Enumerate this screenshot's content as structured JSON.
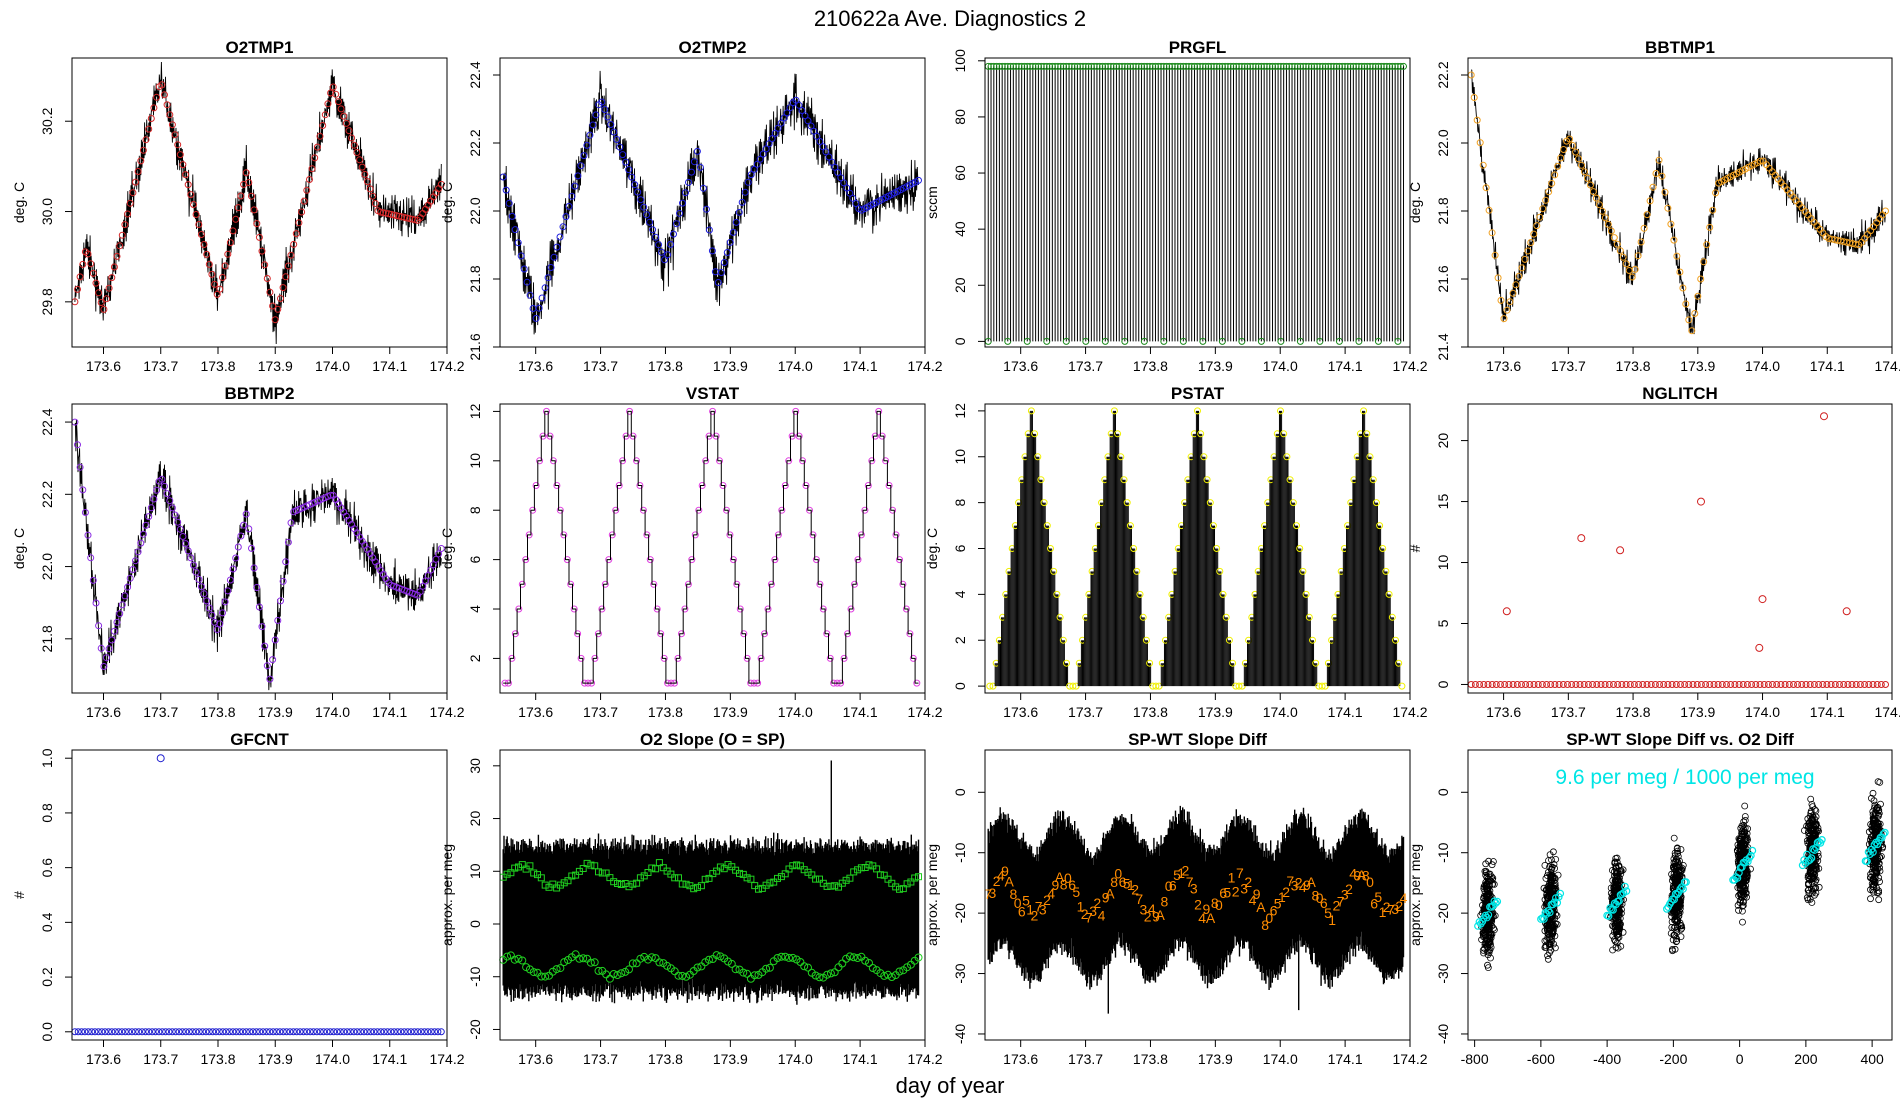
{
  "page": {
    "title": "210622a   Ave. Diagnostics 2",
    "xlabel": "day of year"
  },
  "colors": {
    "O2TMP1": "#d62728",
    "O2TMP2": "#1f1fdf",
    "PRGFL": "#1a8a1a",
    "BBTMP1": "#f0a020",
    "BBTMP2": "#8a2be2",
    "VSTAT": "#e040e0",
    "PSTAT": "#f0f000",
    "NGLITCH": "#d02020",
    "GFCNT": "#2020d0",
    "slope": "#20d020",
    "orange": "#ff8c00",
    "cyan": "#00e5e5"
  },
  "chart_data": [
    {
      "id": "O2TMP1",
      "type": "line",
      "title": "O2TMP1",
      "ylabel": "deg. C",
      "xlim": [
        173.545,
        174.2
      ],
      "ylim": [
        29.7,
        30.34
      ],
      "xticks": [
        173.6,
        173.7,
        173.8,
        173.9,
        174.0,
        174.1,
        174.2
      ],
      "xticklabels": [
        "173.6",
        "173.7",
        "173.8",
        "173.9",
        "174.0",
        "174.1",
        "174.2"
      ],
      "yticks": [
        29.8,
        30.0,
        30.2
      ],
      "yticklabels": [
        "29.8",
        "30.0",
        "30.2"
      ],
      "x": [
        173.55,
        173.57,
        173.6,
        173.7,
        173.8,
        173.85,
        173.9,
        174.0,
        174.08,
        174.15,
        174.19
      ],
      "y": [
        29.8,
        29.92,
        29.78,
        30.29,
        29.81,
        30.09,
        29.76,
        30.28,
        30.0,
        29.98,
        30.06
      ],
      "noise": 0.03
    },
    {
      "id": "O2TMP2",
      "type": "line",
      "title": "O2TMP2",
      "ylabel": "deg. C",
      "xlim": [
        173.545,
        174.2
      ],
      "ylim": [
        21.6,
        22.45
      ],
      "xticks": [
        173.6,
        173.7,
        173.8,
        173.9,
        174.0,
        174.1,
        174.2
      ],
      "xticklabels": [
        "173.6",
        "173.7",
        "173.8",
        "173.9",
        "174.0",
        "174.1",
        "174.2"
      ],
      "yticks": [
        21.6,
        21.8,
        22.0,
        22.2,
        22.4
      ],
      "yticklabels": [
        "21.6",
        "21.8",
        "22.0",
        "22.2",
        "22.4"
      ],
      "x": [
        173.55,
        173.6,
        173.7,
        173.8,
        173.85,
        173.88,
        173.93,
        174.0,
        174.1,
        174.15,
        174.19
      ],
      "y": [
        22.1,
        21.68,
        22.33,
        21.85,
        22.18,
        21.78,
        22.1,
        22.33,
        22.0,
        22.05,
        22.09
      ],
      "noise": 0.05
    },
    {
      "id": "PRGFL",
      "type": "spike",
      "title": "PRGFL",
      "ylabel": "sccm",
      "xlim": [
        173.545,
        174.2
      ],
      "ylim": [
        -2,
        101
      ],
      "xticks": [
        173.6,
        173.7,
        173.8,
        173.9,
        174.0,
        174.1,
        174.2
      ],
      "xticklabels": [
        "173.6",
        "173.7",
        "173.8",
        "173.9",
        "174.0",
        "174.1",
        "174.2"
      ],
      "yticks": [
        0,
        20,
        40,
        60,
        80,
        100
      ],
      "yticklabels": [
        "0",
        "20",
        "40",
        "60",
        "80",
        "100"
      ],
      "high": 98,
      "low": 0,
      "spikes": 150
    },
    {
      "id": "BBTMP1",
      "type": "line",
      "title": "BBTMP1",
      "ylabel": "deg. C",
      "xlim": [
        173.545,
        174.2
      ],
      "ylim": [
        21.4,
        22.25
      ],
      "xticks": [
        173.6,
        173.7,
        173.8,
        173.9,
        174.0,
        174.1,
        174.2
      ],
      "xticklabels": [
        "173.6",
        "173.7",
        "173.8",
        "173.9",
        "174.0",
        "174.1",
        "174.2"
      ],
      "yticks": [
        21.4,
        21.6,
        21.8,
        22.0,
        22.2
      ],
      "yticklabels": [
        "21.4",
        "21.6",
        "21.8",
        "22.0",
        "22.2"
      ],
      "x": [
        173.55,
        173.6,
        173.7,
        173.8,
        173.84,
        173.89,
        173.93,
        174.0,
        174.1,
        174.15,
        174.19
      ],
      "y": [
        22.2,
        21.48,
        22.02,
        21.6,
        21.95,
        21.44,
        21.88,
        21.95,
        21.72,
        21.7,
        21.8
      ],
      "noise": 0.03
    },
    {
      "id": "BBTMP2",
      "type": "line",
      "title": "BBTMP2",
      "ylabel": "deg. C",
      "xlim": [
        173.545,
        174.2
      ],
      "ylim": [
        21.65,
        22.45
      ],
      "xticks": [
        173.6,
        173.7,
        173.8,
        173.9,
        174.0,
        174.1,
        174.2
      ],
      "xticklabels": [
        "173.6",
        "173.7",
        "173.8",
        "173.9",
        "174.0",
        "174.1",
        "174.2"
      ],
      "yticks": [
        21.8,
        22.0,
        22.2,
        22.4
      ],
      "yticklabels": [
        "21.8",
        "22.0",
        "22.2",
        "22.4"
      ],
      "x": [
        173.55,
        173.6,
        173.7,
        173.8,
        173.85,
        173.89,
        173.93,
        174.0,
        174.1,
        174.15,
        174.19
      ],
      "y": [
        22.4,
        21.72,
        22.25,
        21.82,
        22.15,
        21.68,
        22.15,
        22.2,
        21.95,
        21.92,
        22.05
      ],
      "noise": 0.04
    },
    {
      "id": "VSTAT",
      "type": "step",
      "title": "VSTAT",
      "ylabel": "deg. C",
      "xlim": [
        173.545,
        174.2
      ],
      "ylim": [
        0.6,
        12.3
      ],
      "xticks": [
        173.6,
        173.7,
        173.8,
        173.9,
        174.0,
        174.1,
        174.2
      ],
      "xticklabels": [
        "173.6",
        "173.7",
        "173.8",
        "173.9",
        "174.0",
        "174.1",
        "174.2"
      ],
      "yticks": [
        2,
        4,
        6,
        8,
        10,
        12
      ],
      "yticklabels": [
        "2",
        "4",
        "6",
        "8",
        "10",
        "12"
      ],
      "x0": 173.55,
      "x1": 174.19,
      "cycles": 5,
      "min": 1,
      "max": 12
    },
    {
      "id": "PSTAT",
      "type": "spikestep",
      "title": "PSTAT",
      "ylabel": "deg. C",
      "xlim": [
        173.545,
        174.2
      ],
      "ylim": [
        -0.3,
        12.3
      ],
      "xticks": [
        173.6,
        173.7,
        173.8,
        173.9,
        174.0,
        174.1,
        174.2
      ],
      "xticklabels": [
        "173.6",
        "173.7",
        "173.8",
        "173.9",
        "174.0",
        "174.1",
        "174.2"
      ],
      "yticks": [
        0,
        2,
        4,
        6,
        8,
        10,
        12
      ],
      "yticklabels": [
        "0",
        "2",
        "4",
        "6",
        "8",
        "10",
        "12"
      ],
      "x0": 173.55,
      "x1": 174.19,
      "cycles": 5,
      "min": 0,
      "max": 12
    },
    {
      "id": "NGLITCH",
      "type": "scatter",
      "title": "NGLITCH",
      "ylabel": "#",
      "xlim": [
        173.545,
        174.2
      ],
      "ylim": [
        -0.7,
        23
      ],
      "xticks": [
        173.6,
        173.7,
        173.8,
        173.9,
        174.0,
        174.1,
        174.2
      ],
      "xticklabels": [
        "173.6",
        "173.7",
        "173.8",
        "173.9",
        "174.0",
        "174.1",
        "174.2"
      ],
      "yticks": [
        0,
        5,
        10,
        15,
        20
      ],
      "yticklabels": [
        "0",
        "5",
        "10",
        "15",
        "20"
      ],
      "baseline": 0,
      "baseline_x0": 173.55,
      "baseline_x1": 174.19,
      "baseline_n": 100,
      "outliers": [
        [
          173.605,
          6
        ],
        [
          173.72,
          12
        ],
        [
          173.78,
          11
        ],
        [
          173.905,
          15
        ],
        [
          173.995,
          3
        ],
        [
          174.0,
          7
        ],
        [
          174.095,
          22
        ],
        [
          174.13,
          6
        ]
      ]
    },
    {
      "id": "GFCNT",
      "type": "scatter",
      "title": "GFCNT",
      "ylabel": "#",
      "xlim": [
        173.545,
        174.2
      ],
      "ylim": [
        -0.03,
        1.03
      ],
      "xticks": [
        173.6,
        173.7,
        173.8,
        173.9,
        174.0,
        174.1,
        174.2
      ],
      "xticklabels": [
        "173.6",
        "173.7",
        "173.8",
        "173.9",
        "174.0",
        "174.1",
        "174.2"
      ],
      "yticks": [
        0.0,
        0.2,
        0.4,
        0.6,
        0.8,
        1.0
      ],
      "yticklabels": [
        "0.0",
        "0.2",
        "0.4",
        "0.6",
        "0.8",
        "1.0"
      ],
      "baseline": 0,
      "baseline_x0": 173.55,
      "baseline_x1": 174.19,
      "baseline_n": 110,
      "outliers": [
        [
          173.7,
          1.0
        ]
      ]
    },
    {
      "id": "O2SLOPE",
      "type": "band",
      "title": "O2 Slope (O = SP)",
      "ylabel": "approx. per meg",
      "xlim": [
        173.545,
        174.2
      ],
      "ylim": [
        -22,
        33
      ],
      "xticks": [
        173.6,
        173.7,
        173.8,
        173.9,
        174.0,
        174.1,
        174.2
      ],
      "xticklabels": [
        "173.6",
        "173.7",
        "173.8",
        "173.9",
        "174.0",
        "174.1",
        "174.2"
      ],
      "yticks": [
        -20,
        -10,
        0,
        10,
        20,
        30
      ],
      "yticklabels": [
        "-20",
        "-10",
        "0",
        "10",
        "20",
        "30"
      ],
      "band_low": -13,
      "band_high": 15,
      "upper_markers": 9,
      "lower_markers": -8
    },
    {
      "id": "SPWT",
      "type": "band",
      "title": "SP-WT Slope Diff",
      "ylabel": "approx. per meg",
      "xlim": [
        173.545,
        174.2
      ],
      "ylim": [
        -41,
        7
      ],
      "xticks": [
        173.6,
        173.7,
        173.8,
        173.9,
        174.0,
        174.1,
        174.2
      ],
      "xticklabels": [
        "173.6",
        "173.7",
        "173.8",
        "173.9",
        "174.0",
        "174.1",
        "174.2"
      ],
      "yticks": [
        -40,
        -30,
        -20,
        -10,
        0
      ],
      "yticklabels": [
        "-40",
        "-30",
        "-20",
        "-10",
        "0"
      ],
      "band_low": -28,
      "band_high": -7,
      "center": -17,
      "marker_labels": [
        "7",
        "3",
        "2",
        "4",
        "9",
        "A",
        "8",
        "0",
        "6",
        "5",
        "1",
        "2"
      ]
    },
    {
      "id": "SPWTVSO2",
      "type": "clusters",
      "title": "SP-WT Slope Diff vs. O2 Diff",
      "ylabel": "approx. per meg",
      "xlim": [
        -820,
        460
      ],
      "ylim": [
        -41,
        7
      ],
      "xticks": [
        -800,
        -600,
        -400,
        -200,
        0,
        200,
        400
      ],
      "xticklabels": [
        "-800",
        "-600",
        "-400",
        "-200",
        "0",
        "200",
        "400"
      ],
      "yticks": [
        -40,
        -30,
        -20,
        -10,
        0
      ],
      "yticklabels": [
        "-40",
        "-30",
        "-20",
        "-10",
        "0"
      ],
      "annotation": "9.6 per meg / 1000 per meg",
      "cluster_x": [
        -760,
        -570,
        -370,
        -190,
        10,
        220,
        410
      ],
      "cluster_y": [
        -20,
        -19,
        -18,
        -17,
        -12,
        -10,
        -9
      ]
    }
  ]
}
